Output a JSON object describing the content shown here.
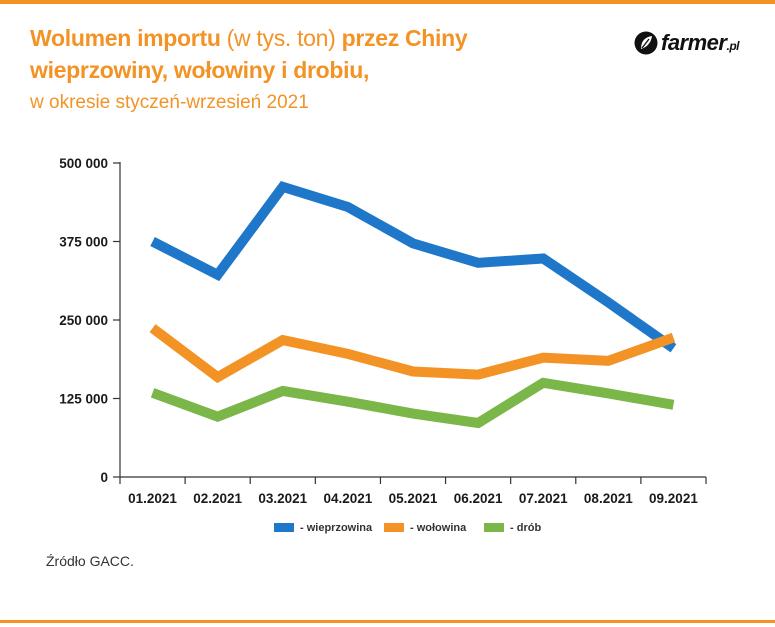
{
  "header": {
    "title_part1": "Wolumen importu",
    "title_part2": " (w tys. ton) ",
    "title_part3": "przez Chiny",
    "title_line2": "wieprzowiny, wołowiny i drobiu,",
    "subtitle": "w okresie styczeń-wrzesień 2021"
  },
  "logo": {
    "text": "farmer",
    "suffix": ".pl",
    "icon": "leaf-icon"
  },
  "source": "Źródło GACC.",
  "colors": {
    "accent": "#f39325",
    "pork": "#1f77c9",
    "beef": "#f39325",
    "poultry": "#7ab648"
  },
  "chart_data": {
    "type": "line",
    "title": "Wolumen importu (w tys. ton) przez Chiny wieprzowiny, wołowiny i drobiu, w okresie styczeń-wrzesień 2021",
    "categories": [
      "01.2021",
      "02.2021",
      "03.2021",
      "04.2021",
      "05.2021",
      "06.2021",
      "07.2021",
      "08.2021",
      "09.2021"
    ],
    "y_ticks": [
      0,
      125000,
      250000,
      375000,
      500000
    ],
    "y_tick_labels": [
      "0",
      "125 000",
      "250 000",
      "375 000",
      "500 000"
    ],
    "ylim": [
      0,
      500000
    ],
    "grid": false,
    "legend_position": "bottom",
    "series": [
      {
        "name": "- wieprzowina",
        "color": "#1f77c9",
        "values": [
          375000,
          322000,
          462000,
          430000,
          372000,
          341000,
          348000,
          278000,
          205000
        ]
      },
      {
        "name": "- wołowina",
        "color": "#f39325",
        "values": [
          237000,
          159000,
          218000,
          196000,
          168000,
          163000,
          190000,
          185000,
          222000
        ]
      },
      {
        "name": "- drób",
        "color": "#7ab648",
        "values": [
          134000,
          96000,
          137000,
          120000,
          101000,
          86000,
          150000,
          133000,
          115000
        ]
      }
    ]
  }
}
